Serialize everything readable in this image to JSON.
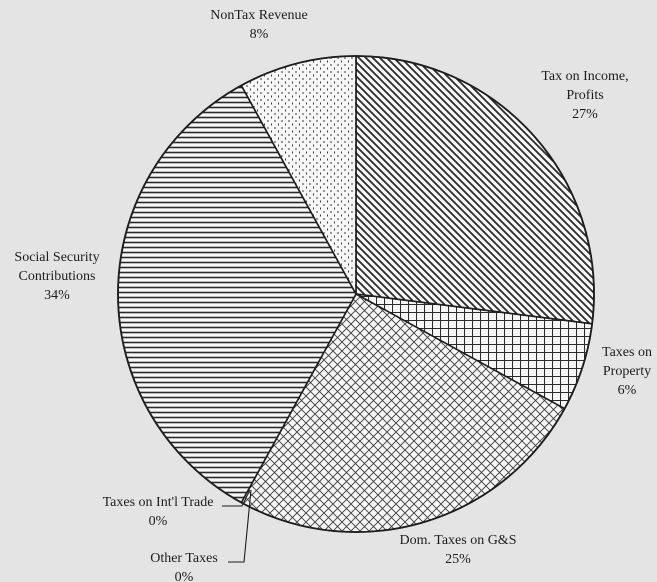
{
  "chart_data": {
    "type": "pie",
    "title": "",
    "slices": [
      {
        "name": "Tax on Income, Profits",
        "label_lines": [
          "Tax on Income,",
          "Profits"
        ],
        "value": 27,
        "pct_label": "27%",
        "pattern": "diagonal-down"
      },
      {
        "name": "Taxes on Property",
        "label_lines": [
          "Taxes on",
          "Property"
        ],
        "value": 6,
        "pct_label": "6%",
        "pattern": "grid"
      },
      {
        "name": "Dom. Taxes on G&S",
        "label_lines": [
          "Dom. Taxes on G&S"
        ],
        "value": 25,
        "pct_label": "25%",
        "pattern": "crosshatch"
      },
      {
        "name": "Other Taxes",
        "label_lines": [
          "Other Taxes"
        ],
        "value": 0,
        "pct_label": "0%",
        "pattern": "none"
      },
      {
        "name": "Taxes on Int'l Trade",
        "label_lines": [
          "Taxes on Int'l Trade"
        ],
        "value": 0,
        "pct_label": "0%",
        "pattern": "none"
      },
      {
        "name": "Social Security Contributions",
        "label_lines": [
          "Social Security",
          "Contributions"
        ],
        "value": 34,
        "pct_label": "34%",
        "pattern": "horizontal"
      },
      {
        "name": "NonTax Revenue",
        "label_lines": [
          "NonTax Revenue"
        ],
        "value": 8,
        "pct_label": "8%",
        "pattern": "dots"
      }
    ],
    "start": "12 o'clock",
    "direction": "clockwise",
    "legend": "none",
    "colors": {
      "background": "#e4e4e4",
      "slice_fill": "#f7f7f7",
      "ink": "#1e1e1e"
    }
  }
}
